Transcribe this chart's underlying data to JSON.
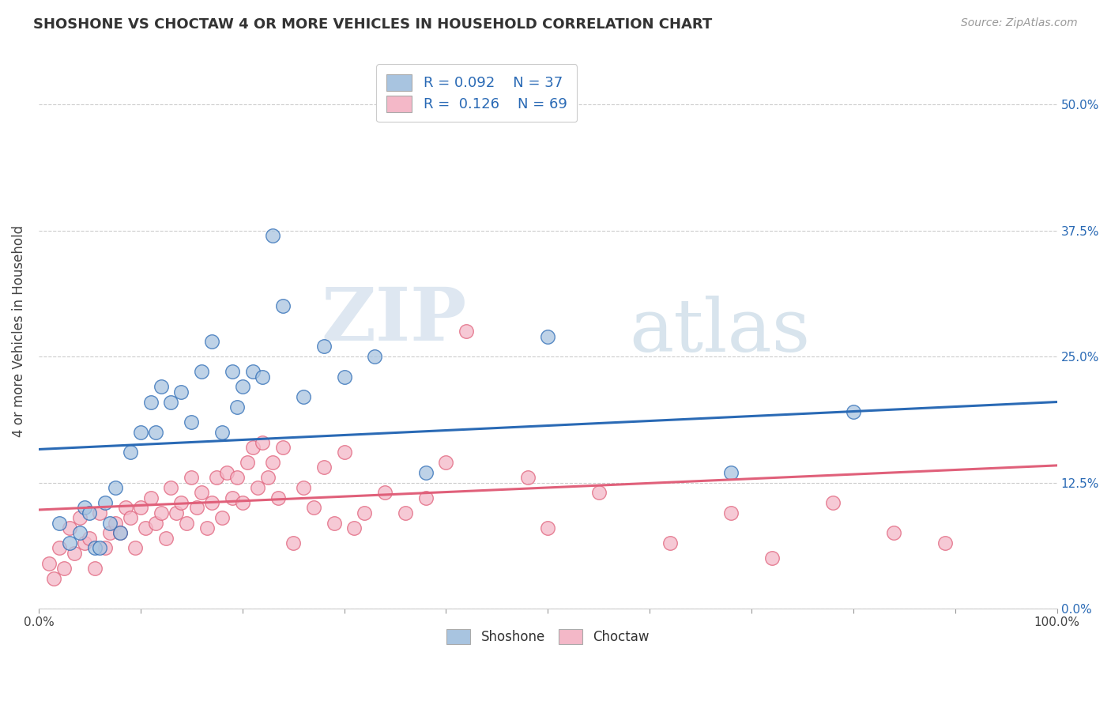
{
  "title": "SHOSHONE VS CHOCTAW 4 OR MORE VEHICLES IN HOUSEHOLD CORRELATION CHART",
  "source_text": "Source: ZipAtlas.com",
  "ylabel": "4 or more Vehicles in Household",
  "xlabel": "",
  "legend_label1": "Shoshone",
  "legend_label2": "Choctaw",
  "r1": 0.092,
  "n1": 37,
  "r2": 0.126,
  "n2": 69,
  "xmin": 0.0,
  "xmax": 1.0,
  "ymin": 0.0,
  "ymax": 0.55,
  "yticks": [
    0.0,
    0.125,
    0.25,
    0.375,
    0.5
  ],
  "ytick_labels_right": [
    "0.0%",
    "12.5%",
    "25.0%",
    "37.5%",
    "50.0%"
  ],
  "xtick_left_label": "0.0%",
  "xtick_right_label": "100.0%",
  "color_shoshone": "#a8c4e0",
  "color_choctaw": "#f4b8c8",
  "line_color_shoshone": "#2a6ab5",
  "line_color_choctaw": "#e0607a",
  "background_color": "#ffffff",
  "watermark_zip": "ZIP",
  "watermark_atlas": "atlas",
  "shoshone_trend_x0": 0.0,
  "shoshone_trend_y0": 0.158,
  "shoshone_trend_x1": 1.0,
  "shoshone_trend_y1": 0.205,
  "choctaw_trend_x0": 0.0,
  "choctaw_trend_y0": 0.098,
  "choctaw_trend_x1": 1.0,
  "choctaw_trend_y1": 0.142,
  "shoshone_x": [
    0.02,
    0.03,
    0.04,
    0.045,
    0.05,
    0.055,
    0.06,
    0.065,
    0.07,
    0.075,
    0.08,
    0.09,
    0.1,
    0.11,
    0.115,
    0.12,
    0.13,
    0.14,
    0.15,
    0.16,
    0.17,
    0.18,
    0.19,
    0.195,
    0.2,
    0.21,
    0.22,
    0.23,
    0.24,
    0.26,
    0.28,
    0.3,
    0.33,
    0.38,
    0.5,
    0.68,
    0.8
  ],
  "shoshone_y": [
    0.085,
    0.065,
    0.075,
    0.1,
    0.095,
    0.06,
    0.06,
    0.105,
    0.085,
    0.12,
    0.075,
    0.155,
    0.175,
    0.205,
    0.175,
    0.22,
    0.205,
    0.215,
    0.185,
    0.235,
    0.265,
    0.175,
    0.235,
    0.2,
    0.22,
    0.235,
    0.23,
    0.37,
    0.3,
    0.21,
    0.26,
    0.23,
    0.25,
    0.135,
    0.27,
    0.135,
    0.195
  ],
  "choctaw_x": [
    0.01,
    0.015,
    0.02,
    0.025,
    0.03,
    0.035,
    0.04,
    0.045,
    0.05,
    0.055,
    0.06,
    0.065,
    0.07,
    0.075,
    0.08,
    0.085,
    0.09,
    0.095,
    0.1,
    0.105,
    0.11,
    0.115,
    0.12,
    0.125,
    0.13,
    0.135,
    0.14,
    0.145,
    0.15,
    0.155,
    0.16,
    0.165,
    0.17,
    0.175,
    0.18,
    0.185,
    0.19,
    0.195,
    0.2,
    0.205,
    0.21,
    0.215,
    0.22,
    0.225,
    0.23,
    0.235,
    0.24,
    0.25,
    0.26,
    0.27,
    0.28,
    0.29,
    0.3,
    0.31,
    0.32,
    0.34,
    0.36,
    0.38,
    0.4,
    0.42,
    0.48,
    0.5,
    0.55,
    0.62,
    0.68,
    0.72,
    0.78,
    0.84,
    0.89
  ],
  "choctaw_y": [
    0.045,
    0.03,
    0.06,
    0.04,
    0.08,
    0.055,
    0.09,
    0.065,
    0.07,
    0.04,
    0.095,
    0.06,
    0.075,
    0.085,
    0.075,
    0.1,
    0.09,
    0.06,
    0.1,
    0.08,
    0.11,
    0.085,
    0.095,
    0.07,
    0.12,
    0.095,
    0.105,
    0.085,
    0.13,
    0.1,
    0.115,
    0.08,
    0.105,
    0.13,
    0.09,
    0.135,
    0.11,
    0.13,
    0.105,
    0.145,
    0.16,
    0.12,
    0.165,
    0.13,
    0.145,
    0.11,
    0.16,
    0.065,
    0.12,
    0.1,
    0.14,
    0.085,
    0.155,
    0.08,
    0.095,
    0.115,
    0.095,
    0.11,
    0.145,
    0.275,
    0.13,
    0.08,
    0.115,
    0.065,
    0.095,
    0.05,
    0.105,
    0.075,
    0.065
  ]
}
